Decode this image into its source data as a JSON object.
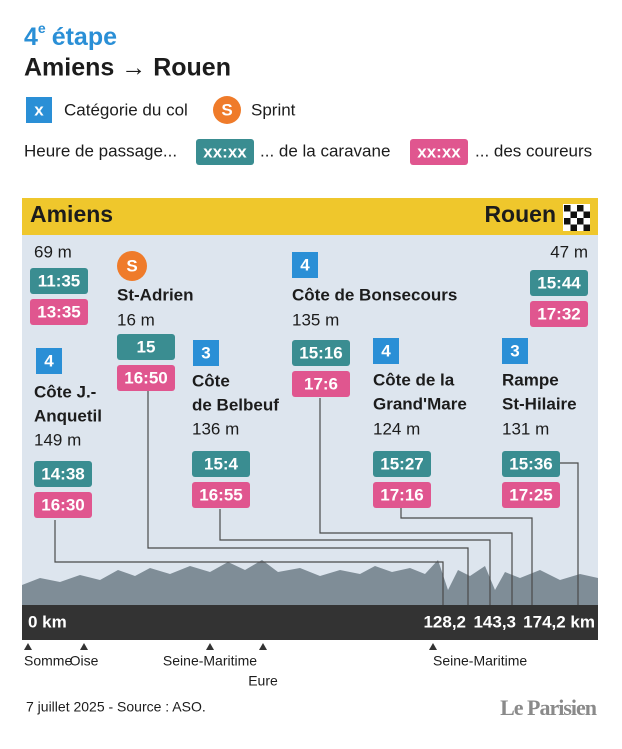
{
  "header": {
    "stage_number": "4",
    "stage_suffix": "e",
    "stage_word": "étape",
    "route": "Amiens → Rouen"
  },
  "legend": {
    "category_marker": "x",
    "category_label": "Catégorie du col",
    "sprint_marker": "S",
    "sprint_label": "Sprint",
    "times_intro": "Heure de passage...",
    "caravan_marker": "xx:xx",
    "caravan_label": "... de la caravane",
    "riders_marker": "xx:xx",
    "riders_label": "... des coureurs"
  },
  "banner": {
    "start": "Amiens",
    "finish": "Rouen"
  },
  "points": [
    {
      "altitude": "69 m",
      "caravan": "11:35",
      "riders": "13:35"
    },
    {
      "marker": "S",
      "name_lines": [
        "St-Adrien"
      ],
      "altitude": "16 m",
      "caravan": "15",
      "riders": "16:50"
    },
    {
      "marker": "4",
      "name_lines": [
        "Côte J.-",
        "Anquetil"
      ],
      "altitude": "149 m",
      "caravan": "14:38",
      "riders": "16:30"
    },
    {
      "marker": "3",
      "name_lines": [
        "Côte",
        "de Belbeuf"
      ],
      "altitude": "136 m",
      "caravan": "15:4",
      "riders": "16:55"
    },
    {
      "marker": "4",
      "name_lines": [
        "Côte de Bonsecours"
      ],
      "altitude": "135 m",
      "caravan": "15:16",
      "riders": "17:6"
    },
    {
      "marker": "4",
      "name_lines": [
        "Côte de la",
        "Grand'Mare"
      ],
      "altitude": "124 m",
      "caravan": "15:27",
      "riders": "17:16"
    },
    {
      "marker": "3",
      "name_lines": [
        "Rampe",
        "St-Hilaire"
      ],
      "altitude": "131 m",
      "caravan": "15:36",
      "riders": "17:25"
    },
    {
      "altitude": "47 m",
      "caravan": "15:44",
      "riders": "17:32"
    }
  ],
  "distances": [
    "0 km",
    "128,2",
    "143,3",
    "174,2 km"
  ],
  "regions": [
    "Somme",
    "Oise",
    "Seine-Maritime",
    "Eure",
    "Seine-Maritime"
  ],
  "footer": {
    "source": "7 juillet 2025 - Source : ASO.",
    "logo": "Le Parisien"
  }
}
